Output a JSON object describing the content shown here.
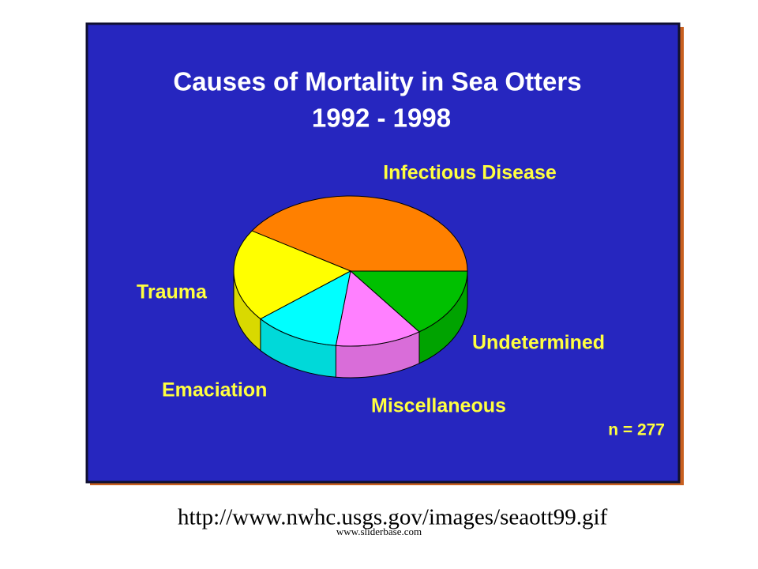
{
  "chart_data": {
    "type": "pie",
    "title": "Causes of Mortality in Sea Otters",
    "subtitle": "1992 - 1998",
    "categories": [
      "Infectious Disease",
      "Trauma",
      "Emaciation",
      "Miscellaneous",
      "Undetermined"
    ],
    "values": [
      41,
      20,
      12,
      12,
      15
    ],
    "colors": [
      "#ff8000",
      "#ffff00",
      "#00ffff",
      "#ff80ff",
      "#00c000"
    ],
    "annotation": "n = 277"
  },
  "source": "http://www.nwhc.usgs.gov/images/seaott99.gif",
  "watermark": "www.sliderbase.com"
}
